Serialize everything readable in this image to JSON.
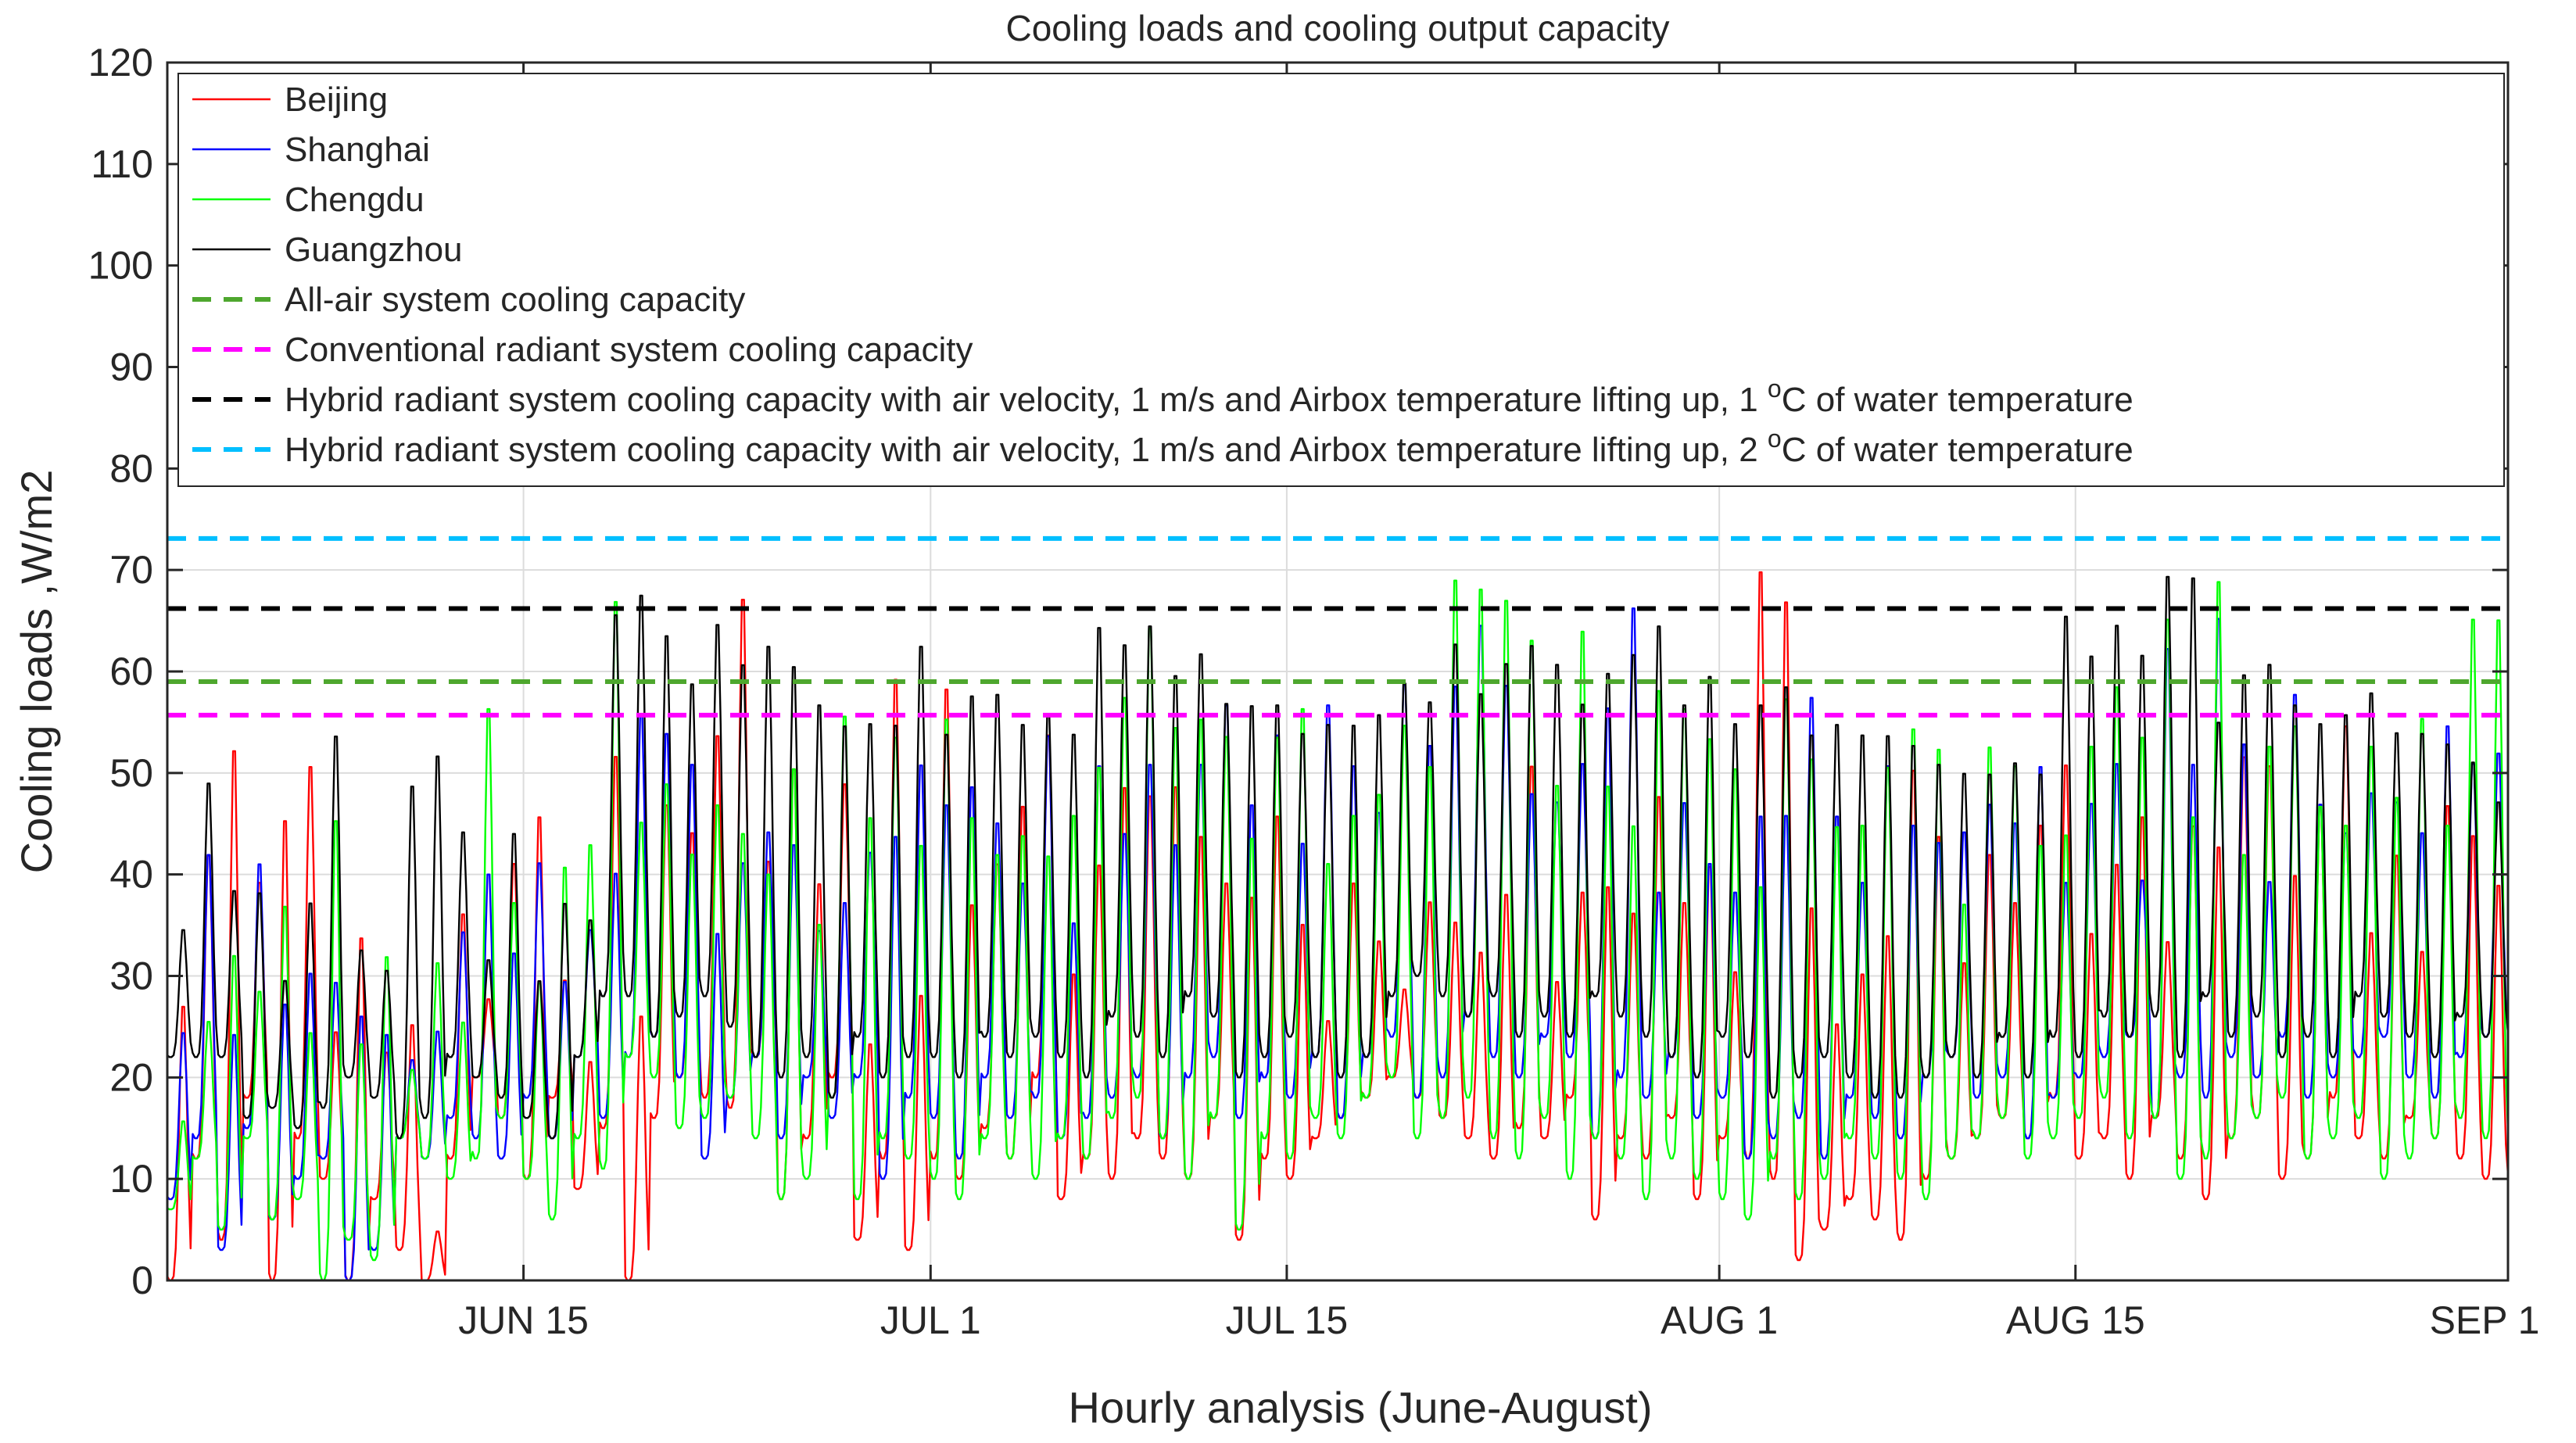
{
  "chart_data": {
    "type": "line",
    "title": "Cooling loads and cooling output capacity",
    "xlabel": "Hourly analysis (June-August)",
    "ylabel": "Cooling loads ,W/m2",
    "xlim": [
      "2023-06-01",
      "2023-09-01"
    ],
    "ylim": [
      0,
      120
    ],
    "grid": true,
    "legend_position": "top-left",
    "x_ticks": [
      {
        "label": "JUN 15",
        "date": "2023-06-15"
      },
      {
        "label": "JUL 1",
        "date": "2023-07-01"
      },
      {
        "label": "JUL 15",
        "date": "2023-07-15"
      },
      {
        "label": "AUG 1",
        "date": "2023-08-01"
      },
      {
        "label": "AUG 15",
        "date": "2023-08-15"
      },
      {
        "label": "SEP 1",
        "date": "2023-09-01"
      }
    ],
    "y_ticks": [
      0,
      10,
      20,
      30,
      40,
      50,
      60,
      70,
      80,
      90,
      100,
      110,
      120
    ],
    "series": [
      {
        "name": "Beijing",
        "color": "#ff0000",
        "style": "solid",
        "daily_peak": [
          28,
          43,
          54,
          40,
          47,
          52,
          25,
          35,
          23,
          26,
          5,
          37,
          28,
          42,
          47,
          30,
          22,
          53,
          27,
          48,
          45,
          55,
          69,
          42,
          52,
          40,
          50,
          24,
          61,
          29,
          60,
          38,
          42,
          48,
          55,
          31,
          42,
          50,
          49,
          50,
          45,
          40,
          39,
          47,
          36,
          26,
          40,
          34,
          29,
          38,
          36,
          33,
          39,
          52,
          30,
          39,
          40,
          37,
          49,
          38,
          42,
          31,
          72,
          69,
          38,
          26,
          31,
          35,
          52,
          45,
          32,
          43,
          38,
          46,
          52,
          35,
          42,
          47,
          34,
          46,
          44,
          53,
          52,
          41,
          48,
          56,
          35,
          43,
          33,
          48,
          45,
          40
        ],
        "daily_min": [
          0,
          12,
          4,
          18,
          0,
          14,
          10,
          0,
          8,
          3,
          0,
          12,
          20,
          16,
          10,
          18,
          9,
          15,
          0,
          16,
          20,
          18,
          17,
          22,
          8,
          14,
          20,
          4,
          12,
          3,
          12,
          10,
          15,
          12,
          20,
          8,
          12,
          10,
          14,
          12,
          10,
          16,
          4,
          12,
          10,
          14,
          16,
          18,
          20,
          18,
          16,
          14,
          12,
          15,
          14,
          18,
          6,
          14,
          12,
          16,
          8,
          14,
          12,
          10,
          2,
          5,
          8,
          6,
          4,
          10,
          12,
          14,
          16,
          14,
          18,
          12,
          14,
          10,
          16,
          12,
          8,
          14,
          16,
          10,
          12,
          18,
          14,
          12,
          16,
          14,
          12,
          10
        ]
      },
      {
        "name": "Shanghai",
        "color": "#0000ff",
        "style": "solid",
        "daily_peak": [
          25,
          43,
          25,
          42,
          28,
          31,
          30,
          27,
          25,
          22,
          25,
          35,
          41,
          33,
          42,
          30,
          35,
          41,
          57,
          55,
          52,
          35,
          42,
          45,
          44,
          35,
          38,
          43,
          45,
          52,
          48,
          50,
          46,
          40,
          55,
          36,
          52,
          45,
          52,
          44,
          52,
          58,
          48,
          55,
          44,
          58,
          52,
          47,
          60,
          54,
          60,
          66,
          60,
          49,
          48,
          52,
          58,
          68,
          39,
          48,
          42,
          39,
          47,
          47,
          59,
          47,
          40,
          52,
          46,
          44,
          45,
          48,
          46,
          52,
          40,
          48,
          52,
          40,
          64,
          52,
          67,
          54,
          40,
          59,
          48,
          45,
          49,
          48,
          45,
          56,
          52,
          53
        ],
        "daily_min": [
          8,
          14,
          3,
          15,
          6,
          10,
          12,
          0,
          3,
          14,
          12,
          16,
          14,
          12,
          18,
          14,
          22,
          16,
          22,
          24,
          20,
          12,
          18,
          22,
          14,
          20,
          16,
          20,
          10,
          18,
          16,
          12,
          20,
          16,
          18,
          14,
          16,
          18,
          20,
          14,
          20,
          22,
          16,
          20,
          18,
          22,
          16,
          22,
          24,
          18,
          20,
          26,
          22,
          20,
          24,
          22,
          14,
          20,
          18,
          22,
          16,
          18,
          12,
          14,
          16,
          12,
          18,
          16,
          14,
          20,
          22,
          18,
          20,
          14,
          18,
          20,
          22,
          24,
          16,
          20,
          18,
          22,
          20,
          24,
          18,
          20,
          22,
          24,
          20,
          18,
          22,
          24
        ]
      },
      {
        "name": "Chengdu",
        "color": "#00ff00",
        "style": "solid",
        "daily_peak": [
          16,
          26,
          33,
          29,
          38,
          25,
          47,
          24,
          33,
          21,
          32,
          26,
          58,
          38,
          30,
          42,
          44,
          69,
          46,
          50,
          43,
          48,
          45,
          41,
          52,
          36,
          57,
          47,
          55,
          44,
          57,
          47,
          43,
          45,
          43,
          47,
          52,
          59,
          66,
          56,
          57,
          55,
          45,
          55,
          58,
          42,
          47,
          49,
          56,
          52,
          71,
          70,
          69,
          65,
          50,
          66,
          50,
          46,
          60,
          58,
          55,
          52,
          40,
          59,
          53,
          46,
          46,
          52,
          56,
          54,
          38,
          54,
          52,
          44,
          45,
          54,
          60,
          55,
          67,
          47,
          71,
          43,
          54,
          56,
          48,
          46,
          54,
          49,
          57,
          46,
          67,
          67
        ],
        "daily_min": [
          7,
          12,
          5,
          14,
          6,
          8,
          0,
          4,
          2,
          14,
          12,
          10,
          12,
          16,
          10,
          6,
          14,
          11,
          22,
          20,
          15,
          16,
          18,
          14,
          8,
          10,
          18,
          8,
          14,
          12,
          10,
          8,
          14,
          12,
          10,
          14,
          12,
          16,
          18,
          14,
          10,
          16,
          5,
          14,
          12,
          16,
          14,
          18,
          20,
          14,
          16,
          18,
          14,
          12,
          16,
          10,
          14,
          12,
          8,
          12,
          10,
          8,
          6,
          12,
          8,
          10,
          14,
          12,
          10,
          8,
          12,
          14,
          16,
          12,
          14,
          16,
          18,
          14,
          16,
          10,
          12,
          14,
          16,
          18,
          12,
          14,
          16,
          10,
          12,
          14,
          16,
          14
        ]
      },
      {
        "name": "Guangzhou",
        "color": "#000000",
        "style": "solid",
        "daily_peak": [
          35,
          50,
          39,
          39,
          30,
          38,
          55,
          33,
          31,
          50,
          53,
          45,
          32,
          45,
          30,
          38,
          36,
          67,
          69,
          65,
          60,
          66,
          62,
          64,
          62,
          58,
          56,
          56,
          56,
          64,
          55,
          59,
          59,
          56,
          57,
          55,
          66,
          64,
          66,
          61,
          63,
          58,
          58,
          58,
          55,
          56,
          56,
          57,
          60,
          58,
          64,
          59,
          62,
          64,
          62,
          58,
          61,
          63,
          66,
          58,
          61,
          56,
          58,
          60,
          55,
          56,
          55,
          55,
          54,
          52,
          51,
          51,
          52,
          51,
          67,
          63,
          66,
          63,
          71,
          71,
          56,
          61,
          62,
          58,
          56,
          57,
          59,
          55,
          55,
          54,
          52,
          48
        ],
        "daily_min": [
          22,
          22,
          22,
          16,
          17,
          15,
          17,
          20,
          18,
          14,
          16,
          22,
          20,
          18,
          16,
          14,
          22,
          28,
          28,
          24,
          26,
          28,
          25,
          22,
          20,
          22,
          18,
          24,
          20,
          22,
          22,
          20,
          24,
          22,
          24,
          22,
          20,
          26,
          24,
          22,
          28,
          26,
          20,
          22,
          24,
          22,
          20,
          22,
          28,
          30,
          28,
          26,
          28,
          24,
          26,
          24,
          28,
          26,
          24,
          22,
          20,
          24,
          22,
          18,
          20,
          22,
          20,
          18,
          18,
          20,
          22,
          20,
          24,
          20,
          24,
          22,
          26,
          24,
          26,
          22,
          28,
          24,
          26,
          22,
          24,
          22,
          28,
          26,
          24,
          22,
          26,
          24
        ]
      },
      {
        "name": "All-air system cooling capacity",
        "color": "#4ea72e",
        "style": "dashed",
        "value": 59
      },
      {
        "name": "Conventional radiant system cooling capacity",
        "color": "#ff00ff",
        "style": "dashed",
        "value": 55.7
      },
      {
        "name": "Hybrid radiant system cooling capacity with air velocity, 1 m/s and Airbox temperature lifting up, 1 °C of water temperature",
        "color": "#000000",
        "style": "dashed",
        "value": 66.2
      },
      {
        "name": "Hybrid radiant system cooling capacity with air velocity, 1 m/s and Airbox temperature lifting up, 2 °C of water temperature",
        "color": "#00bfff",
        "style": "dashed",
        "value": 73.1
      }
    ],
    "legend": {
      "entries": [
        {
          "text": "Beijing"
        },
        {
          "text": "Shanghai"
        },
        {
          "text": "Chengdu"
        },
        {
          "text": "Guangzhou"
        },
        {
          "text": "All-air system cooling capacity"
        },
        {
          "text": "Conventional radiant system cooling capacity"
        },
        {
          "text": "Hybrid radiant system cooling capacity with air velocity, 1 m/s and Airbox temperature lifting up, 1 ",
          "sup": "o",
          "tail": "C of water temperature"
        },
        {
          "text": "Hybrid radiant system cooling capacity with air velocity, 1 m/s and Airbox temperature lifting up, 2 ",
          "sup": "o",
          "tail": "C of water temperature"
        }
      ]
    }
  }
}
